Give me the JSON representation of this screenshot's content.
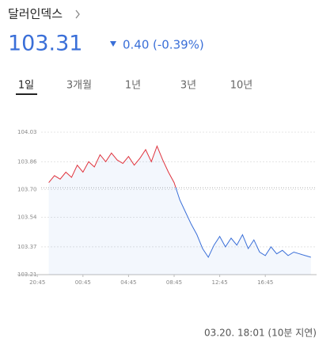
{
  "header": {
    "title": "달러인덱스",
    "price": "103.31",
    "change": "0.40",
    "change_pct": "(-0.39%)"
  },
  "tabs": [
    "1일",
    "3개월",
    "1년",
    "3년",
    "10년"
  ],
  "chart_data": {
    "type": "line",
    "x": [
      1,
      1.5,
      2,
      2.5,
      3,
      3.5,
      4,
      4.5,
      5,
      5.5,
      6,
      6.5,
      7,
      7.5,
      8,
      8.5,
      9,
      9.5,
      10,
      10.5,
      11,
      11.5,
      12,
      12.5,
      13,
      13.5,
      14,
      14.5,
      15,
      15.5,
      16,
      16.5,
      17,
      17.5,
      18,
      18.5,
      19,
      19.5,
      20,
      20.5,
      21,
      21.5,
      22,
      22.5,
      23,
      23.5,
      24
    ],
    "values": [
      103.74,
      103.78,
      103.76,
      103.8,
      103.77,
      103.84,
      103.8,
      103.86,
      103.83,
      103.9,
      103.86,
      103.91,
      103.87,
      103.85,
      103.89,
      103.84,
      103.88,
      103.93,
      103.86,
      103.95,
      103.87,
      103.8,
      103.74,
      103.64,
      103.57,
      103.5,
      103.44,
      103.36,
      103.31,
      103.38,
      103.43,
      103.37,
      103.42,
      103.38,
      103.44,
      103.36,
      103.41,
      103.34,
      103.32,
      103.37,
      103.33,
      103.35,
      103.32,
      103.34,
      103.33,
      103.32,
      103.31
    ],
    "prev_close": 103.71,
    "up_color": "#e0323c",
    "down_color": "#3a6fd8",
    "xlim": [
      -0.5,
      24.5
    ],
    "xticks": [
      {
        "value": 0,
        "label": "20:45"
      },
      {
        "value": 4,
        "label": "00:45"
      },
      {
        "value": 8,
        "label": "04:45"
      },
      {
        "value": 12,
        "label": "08:45"
      },
      {
        "value": 16,
        "label": "12:45"
      },
      {
        "value": 20,
        "label": "16:45"
      }
    ],
    "ylim": [
      103.21,
      104.03
    ],
    "yticks": [
      104.03,
      103.86,
      {
        "value": 103.7,
        "label": "103.70"
      },
      103.54,
      103.37,
      103.21
    ],
    "grid": true
  },
  "footer": "03.20. 18:01 (10분 지연)"
}
